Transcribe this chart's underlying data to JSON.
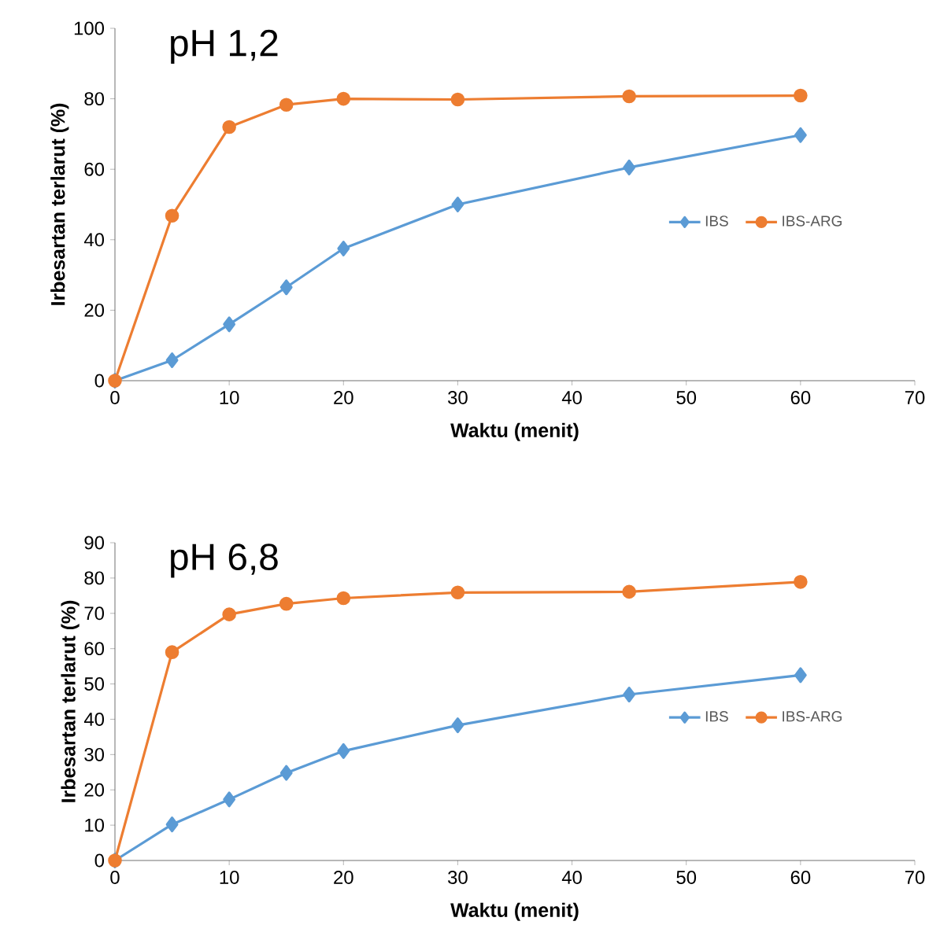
{
  "chart_data": [
    {
      "type": "line",
      "title": "pH 1,2",
      "xlabel": "Waktu (menit)",
      "ylabel": "Irbesartan terlarut (%)",
      "x": [
        0,
        5,
        10,
        15,
        20,
        30,
        45,
        60
      ],
      "xlim": [
        0,
        70
      ],
      "xticks": [
        0,
        10,
        20,
        30,
        40,
        50,
        60,
        70
      ],
      "ylim": [
        0,
        100
      ],
      "yticks": [
        0,
        20,
        40,
        60,
        80,
        100
      ],
      "grid": false,
      "legend": "right",
      "series": [
        {
          "name": "IBS",
          "color": "#5b9bd5",
          "marker": "diamond",
          "values": [
            0,
            5.8,
            16,
            26.5,
            37.5,
            50,
            60.5,
            69.7
          ]
        },
        {
          "name": "IBS-ARG",
          "color": "#ed7d31",
          "marker": "circle",
          "values": [
            0,
            46.8,
            72,
            78.3,
            80,
            79.8,
            80.7,
            80.9
          ]
        }
      ]
    },
    {
      "type": "line",
      "title": "pH 6,8",
      "xlabel": "Waktu (menit)",
      "ylabel": "Irbesartan terlarut (%)",
      "x": [
        0,
        5,
        10,
        15,
        20,
        30,
        45,
        60
      ],
      "xlim": [
        0,
        70
      ],
      "xticks": [
        0,
        10,
        20,
        30,
        40,
        50,
        60,
        70
      ],
      "ylim": [
        0,
        90
      ],
      "yticks": [
        0,
        10,
        20,
        30,
        40,
        50,
        60,
        70,
        80,
        90
      ],
      "grid": false,
      "legend": "right",
      "series": [
        {
          "name": "IBS",
          "color": "#5b9bd5",
          "marker": "diamond",
          "values": [
            0,
            10.2,
            17.3,
            24.8,
            31,
            38.3,
            47,
            52.5
          ]
        },
        {
          "name": "IBS-ARG",
          "color": "#ed7d31",
          "marker": "circle",
          "values": [
            0,
            59,
            69.7,
            72.7,
            74.3,
            75.9,
            76.1,
            78.9
          ]
        }
      ]
    }
  ]
}
